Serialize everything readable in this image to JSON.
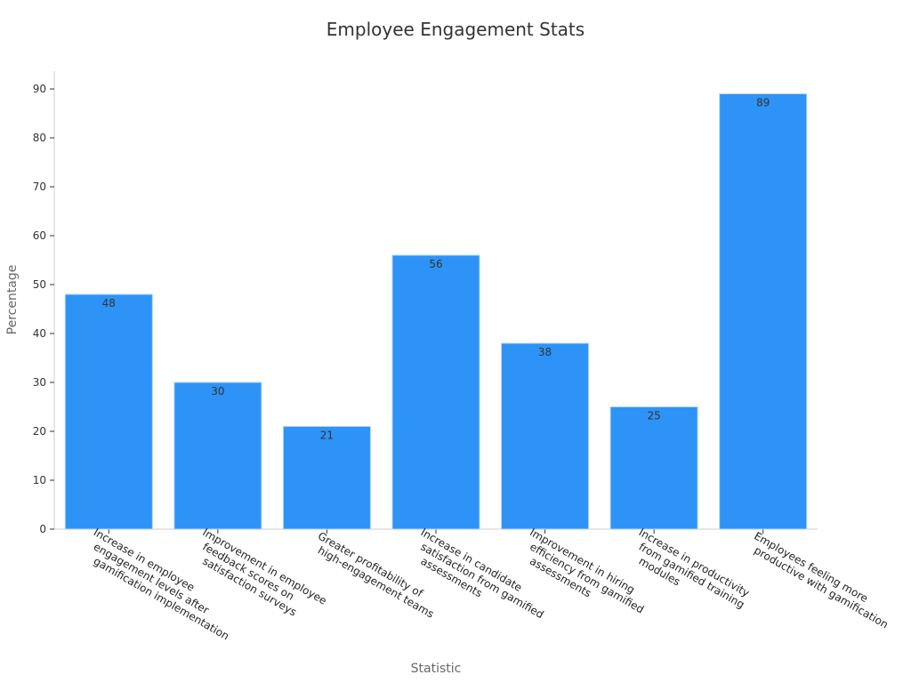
{
  "chart_data": {
    "type": "bar",
    "title": "Employee Engagement Stats",
    "xlabel": "Statistic",
    "ylabel": "Percentage",
    "ylim": [
      0,
      90
    ],
    "yticks": [
      0,
      10,
      20,
      30,
      40,
      50,
      60,
      70,
      80,
      90
    ],
    "grid": false,
    "bar_color": "#2e93f6",
    "categories": [
      [
        "Increase in employee",
        "engagement levels after",
        "gamification implementation"
      ],
      [
        "Improvement in employee",
        "feedback scores on",
        "satisfaction surveys"
      ],
      [
        "Greater profitability of",
        "high-engagement teams"
      ],
      [
        "Increase in candidate",
        "satisfaction from gamified",
        "assessments"
      ],
      [
        "Improvement in hiring",
        "efficiency from gamified",
        "assessments"
      ],
      [
        "Increase in productivity",
        "from gamified training",
        "modules"
      ],
      [
        "Employees feeling more",
        "productive with gamification"
      ]
    ],
    "values": [
      48,
      30,
      21,
      56,
      38,
      25,
      89
    ]
  }
}
